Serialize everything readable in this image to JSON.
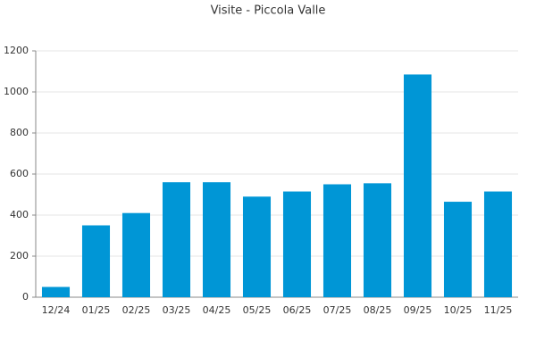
{
  "chart_data": {
    "type": "bar",
    "title": "Visite - Piccola Valle",
    "categories": [
      "12/24",
      "01/25",
      "02/25",
      "03/25",
      "04/25",
      "05/25",
      "06/25",
      "07/25",
      "08/25",
      "09/25",
      "10/25",
      "11/25"
    ],
    "values": [
      50,
      350,
      410,
      560,
      560,
      490,
      515,
      550,
      555,
      1085,
      465,
      515
    ],
    "color": "#0096d6",
    "ylim": [
      0,
      1200
    ],
    "yticks": [
      0,
      200,
      400,
      600,
      800,
      1000,
      1200
    ],
    "grid": true
  }
}
